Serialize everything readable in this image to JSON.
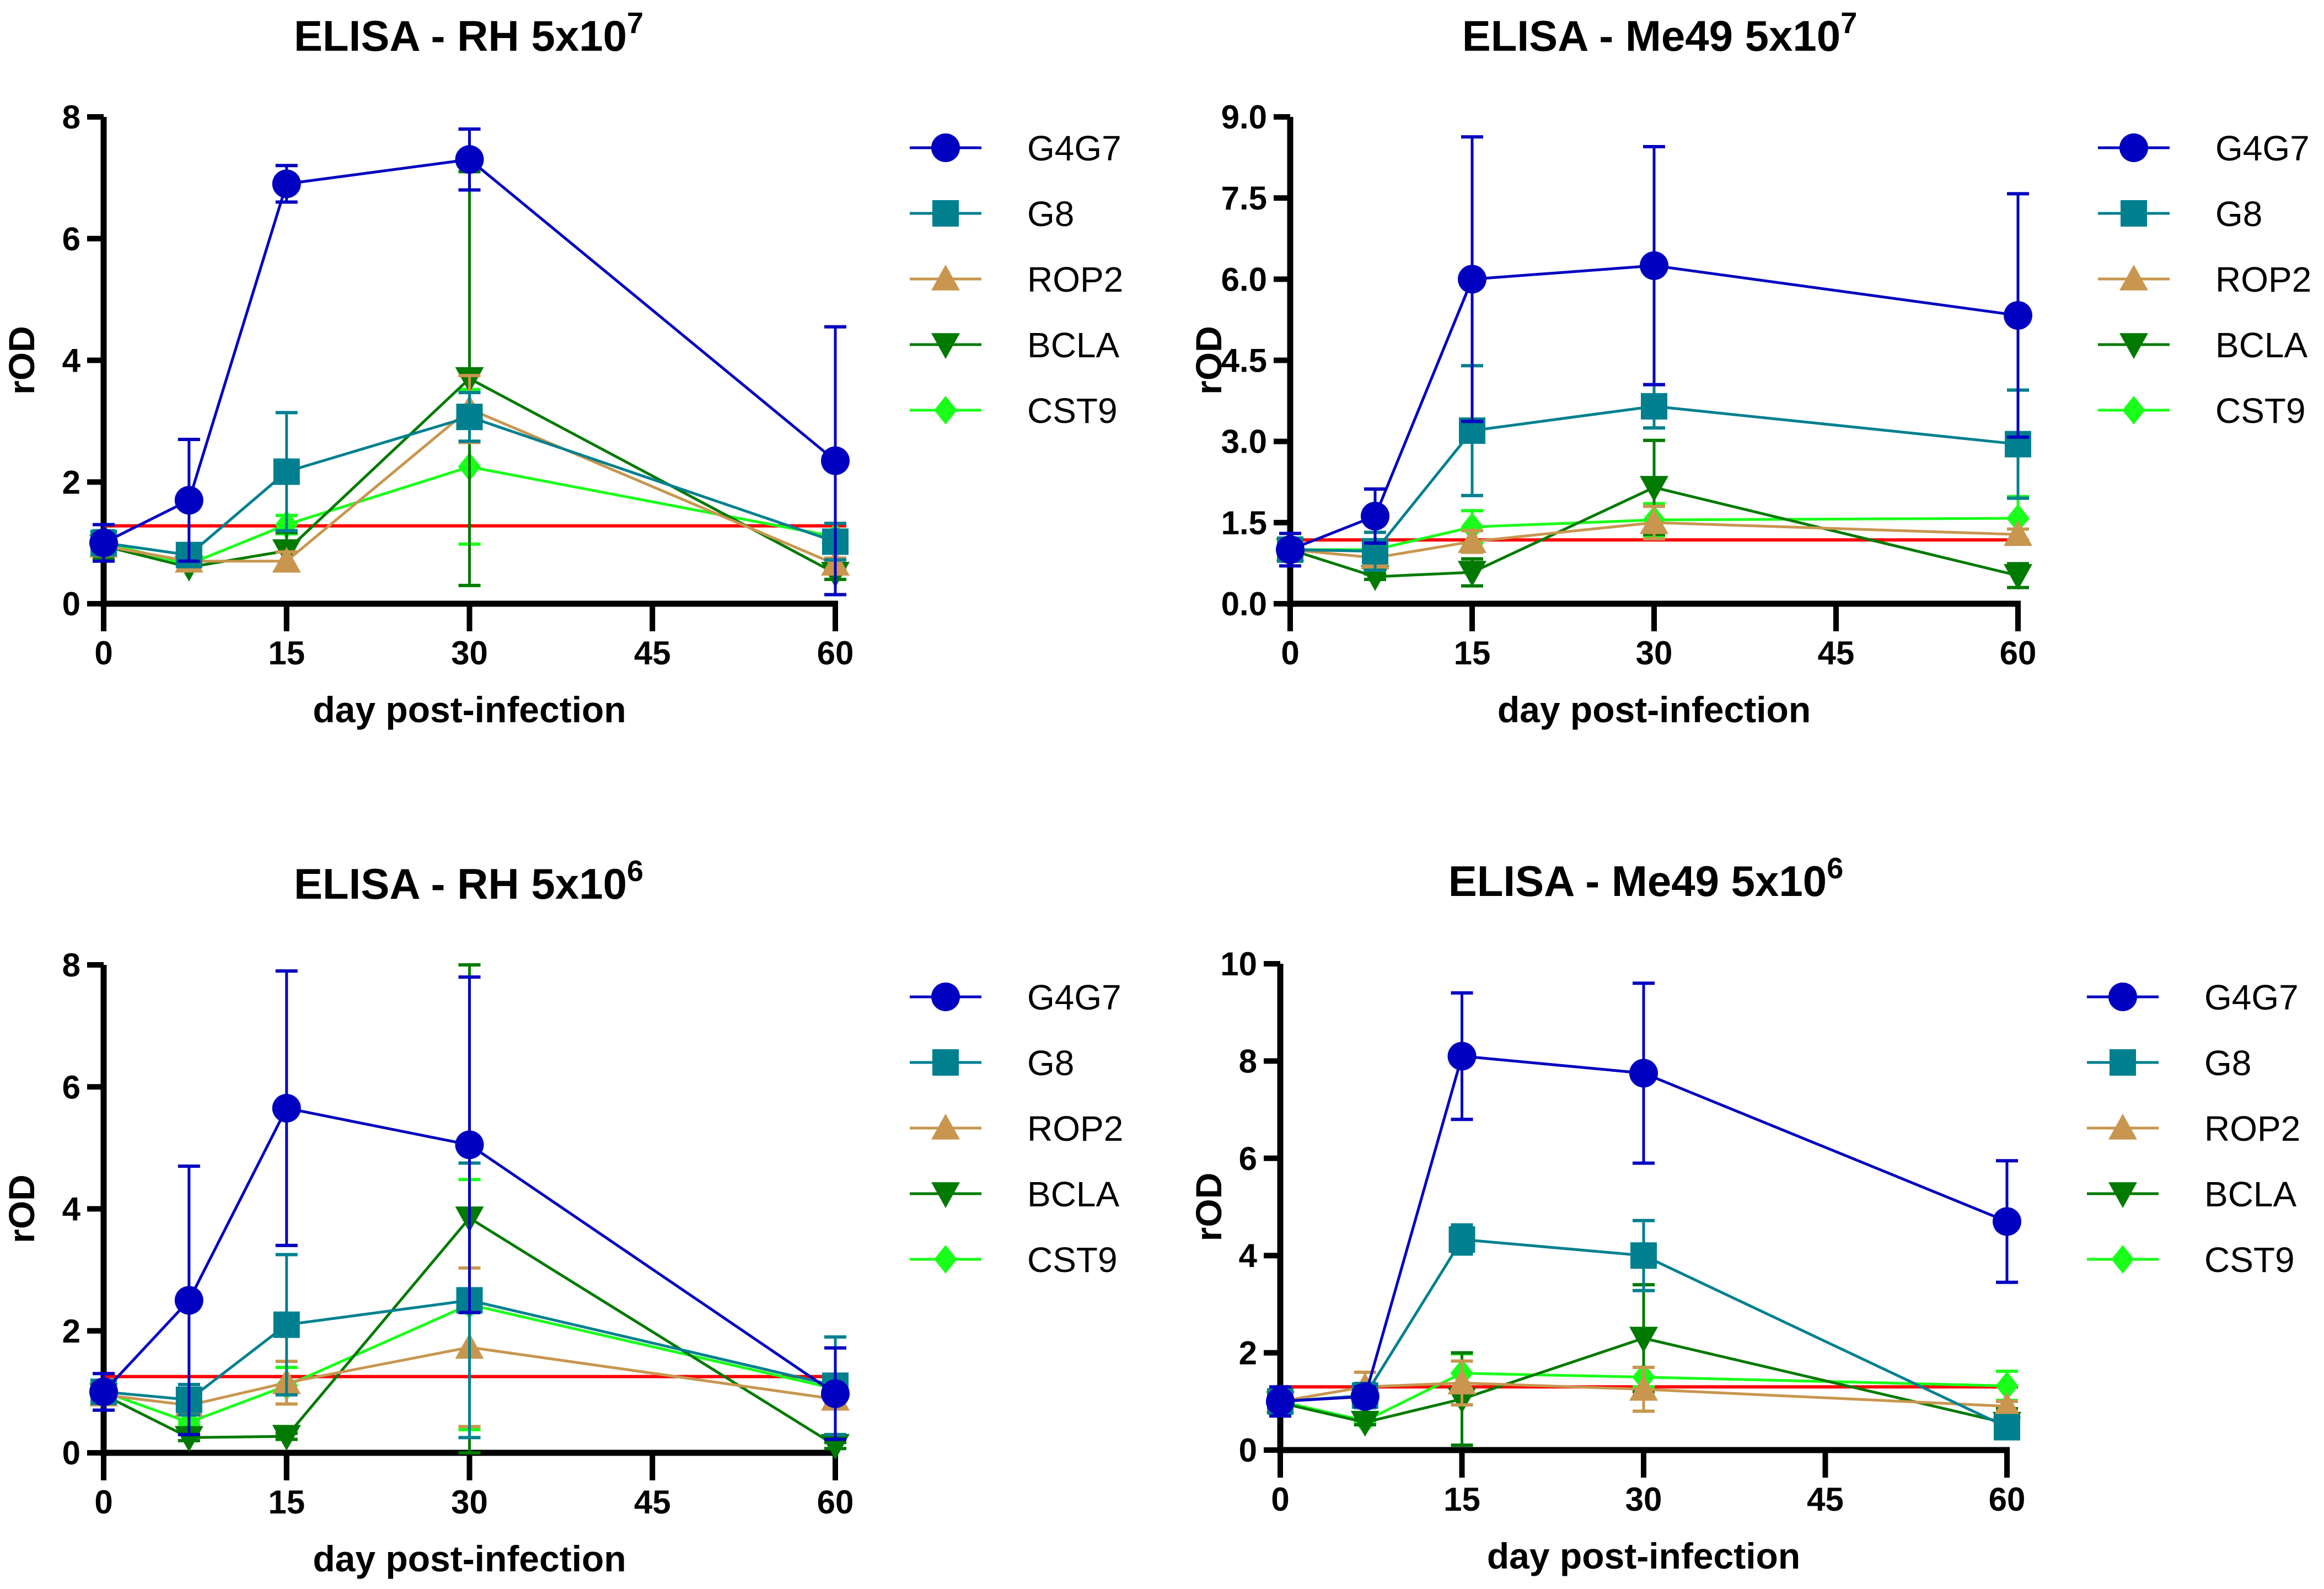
{
  "chart_data": [
    {
      "type": "line",
      "title": "ELISA - RH 5x10",
      "title_exponent": "7",
      "xlabel": "day post-infection",
      "ylabel": "rOD",
      "x": [
        0,
        7,
        15,
        30,
        60
      ],
      "xticks": [
        "0",
        "15",
        "30",
        "45",
        "60"
      ],
      "xlim": [
        0,
        60
      ],
      "ylim": [
        0,
        8
      ],
      "yticks": [
        "0",
        "2",
        "4",
        "6",
        "8"
      ],
      "cutoff": 1.28,
      "legend": "right",
      "series": [
        {
          "name": "G4G7",
          "marker": "circle",
          "values": [
            1.0,
            1.7,
            6.9,
            7.3,
            2.35
          ],
          "errors": [
            0.3,
            1.0,
            0.3,
            0.5,
            2.2
          ]
        },
        {
          "name": "G8",
          "marker": "square",
          "values": [
            1.0,
            0.8,
            2.17,
            3.07,
            1.02
          ],
          "errors": [
            0.2,
            0.1,
            0.97,
            0.4,
            0.3
          ]
        },
        {
          "name": "ROP2",
          "marker": "triangle-up",
          "values": [
            0.95,
            0.7,
            0.7,
            3.2,
            0.65
          ],
          "errors": [
            0.15,
            0.05,
            0.15,
            0.55,
            0.1
          ]
        },
        {
          "name": "BCLA",
          "marker": "triangle-down",
          "values": [
            0.95,
            0.6,
            0.87,
            3.7,
            0.5
          ],
          "errors": [
            0.2,
            0.05,
            0.3,
            3.4,
            0.1
          ]
        },
        {
          "name": "CST9",
          "marker": "diamond",
          "values": [
            1.0,
            0.65,
            1.3,
            2.25,
            1.1
          ],
          "errors": [
            0.15,
            0.05,
            0.15,
            1.27,
            0.1
          ]
        }
      ]
    },
    {
      "type": "line",
      "title": "ELISA - Me49 5x10",
      "title_exponent": "7",
      "xlabel": "day post-infection",
      "ylabel": "rOD",
      "x": [
        0,
        7,
        15,
        30,
        60
      ],
      "xticks": [
        "0",
        "15",
        "30",
        "45",
        "60"
      ],
      "xlim": [
        0,
        60
      ],
      "ylim": [
        0,
        9
      ],
      "yticks": [
        "0.0",
        "1.5",
        "3.0",
        "4.5",
        "6.0",
        "7.5",
        "9.0"
      ],
      "cutoff": 1.18,
      "legend": "right",
      "series": [
        {
          "name": "G4G7",
          "marker": "circle",
          "values": [
            1.0,
            1.62,
            6.0,
            6.25,
            5.33
          ],
          "errors": [
            0.3,
            0.5,
            2.63,
            2.2,
            2.25
          ]
        },
        {
          "name": "G8",
          "marker": "square",
          "values": [
            1.0,
            0.97,
            3.2,
            3.65,
            2.95
          ],
          "errors": [
            0.2,
            0.35,
            1.2,
            0.4,
            1.0
          ]
        },
        {
          "name": "ROP2",
          "marker": "triangle-up",
          "values": [
            1.0,
            0.85,
            1.15,
            1.5,
            1.28
          ],
          "errors": [
            0.15,
            0.1,
            0.2,
            0.3,
            0.1
          ]
        },
        {
          "name": "BCLA",
          "marker": "triangle-down",
          "values": [
            1.0,
            0.5,
            0.58,
            2.15,
            0.52
          ],
          "errors": [
            0.2,
            0.05,
            0.25,
            0.87,
            0.22
          ]
        },
        {
          "name": "CST9",
          "marker": "diamond",
          "values": [
            1.0,
            1.0,
            1.42,
            1.55,
            1.58
          ],
          "errors": [
            0.1,
            0.05,
            0.3,
            0.3,
            0.4
          ]
        }
      ]
    },
    {
      "type": "line",
      "title": "ELISA - RH 5x10",
      "title_exponent": "6",
      "xlabel": "day post-infection",
      "ylabel": "rOD",
      "x": [
        0,
        7,
        15,
        30,
        60
      ],
      "xticks": [
        "0",
        "15",
        "30",
        "45",
        "60"
      ],
      "xlim": [
        0,
        60
      ],
      "ylim": [
        0,
        8
      ],
      "yticks": [
        "0",
        "2",
        "4",
        "6",
        "8"
      ],
      "cutoff": 1.25,
      "legend": "right",
      "series": [
        {
          "name": "G4G7",
          "marker": "circle",
          "values": [
            1.0,
            2.5,
            5.65,
            5.05,
            0.97
          ],
          "errors": [
            0.3,
            2.2,
            2.25,
            2.75,
            0.75
          ]
        },
        {
          "name": "G8",
          "marker": "square",
          "values": [
            1.0,
            0.87,
            2.1,
            2.5,
            1.1
          ],
          "errors": [
            0.15,
            0.25,
            1.15,
            2.25,
            0.8
          ]
        },
        {
          "name": "ROP2",
          "marker": "triangle-up",
          "values": [
            0.95,
            0.78,
            1.15,
            1.73,
            0.88
          ],
          "errors": [
            0.1,
            0.1,
            0.35,
            1.3,
            0.1
          ]
        },
        {
          "name": "BCLA",
          "marker": "triangle-down",
          "values": [
            0.95,
            0.25,
            0.27,
            3.85,
            0.12
          ],
          "errors": [
            0.15,
            0.05,
            0.05,
            4.15,
            0.05
          ]
        },
        {
          "name": "CST9",
          "marker": "diamond",
          "values": [
            1.0,
            0.5,
            1.1,
            2.43,
            1.05
          ],
          "errors": [
            0.1,
            0.05,
            0.3,
            2.05,
            0.1
          ]
        }
      ]
    },
    {
      "type": "line",
      "title": "ELISA  - Me49 5x10",
      "title_exponent": "6",
      "xlabel": "day post-infection",
      "ylabel": "rOD",
      "x": [
        0,
        7,
        15,
        30,
        60
      ],
      "xticks": [
        "0",
        "15",
        "30",
        "45",
        "60"
      ],
      "xlim": [
        0,
        60
      ],
      "ylim": [
        0,
        10
      ],
      "yticks": [
        "0",
        "2",
        "4",
        "6",
        "8",
        "10"
      ],
      "cutoff": 1.3,
      "legend": "right",
      "series": [
        {
          "name": "G4G7",
          "marker": "circle",
          "values": [
            1.0,
            1.1,
            8.1,
            7.75,
            4.7
          ],
          "errors": [
            0.3,
            0.2,
            1.3,
            1.85,
            1.25
          ]
        },
        {
          "name": "G8",
          "marker": "square",
          "values": [
            1.0,
            1.12,
            4.33,
            4.0,
            0.47
          ],
          "errors": [
            0.2,
            0.25,
            0.3,
            0.72,
            0.1
          ]
        },
        {
          "name": "ROP2",
          "marker": "triangle-up",
          "values": [
            1.0,
            1.3,
            1.38,
            1.25,
            0.9
          ],
          "errors": [
            0.1,
            0.3,
            0.45,
            0.45,
            0.1
          ]
        },
        {
          "name": "BCLA",
          "marker": "triangle-down",
          "values": [
            0.97,
            0.57,
            1.05,
            2.3,
            0.55
          ],
          "errors": [
            0.1,
            0.05,
            0.95,
            1.1,
            0.3
          ]
        },
        {
          "name": "CST9",
          "marker": "diamond",
          "values": [
            1.0,
            0.6,
            1.58,
            1.5,
            1.32
          ],
          "errors": [
            0.1,
            0.05,
            0.4,
            0.2,
            0.3
          ]
        }
      ]
    }
  ],
  "colors": {
    "G4G7": "#0000c0",
    "G8": "#00808f",
    "ROP2": "#c8964f",
    "BCLA": "#007a00",
    "CST9": "#19ff19",
    "cutoff": "#ff0000"
  }
}
